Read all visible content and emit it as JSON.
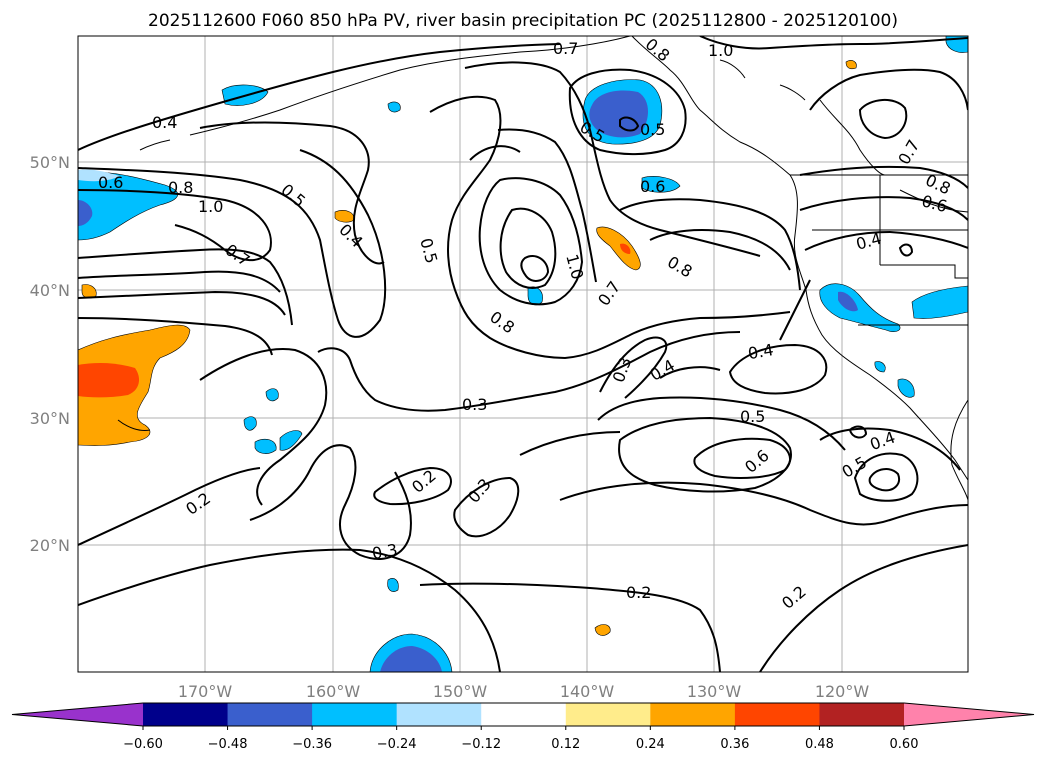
{
  "title": "2025112600 F060 850 hPa PV, river basin precipitation PC (2025112800 - 2025120100)",
  "map": {
    "lat_ticks": [
      "50°N",
      "40°N",
      "30°N",
      "20°N"
    ],
    "lon_ticks": [
      "170°W",
      "160°W",
      "150°W",
      "140°W",
      "130°W",
      "120°W"
    ],
    "contour_labels": [
      {
        "text": "0.4"
      },
      {
        "text": "0.6"
      },
      {
        "text": "0.8"
      },
      {
        "text": "1.0"
      },
      {
        "text": "0.5"
      },
      {
        "text": "0.4"
      },
      {
        "text": "0.7"
      },
      {
        "text": "0.5"
      },
      {
        "text": "0.5"
      },
      {
        "text": "0.8"
      },
      {
        "text": "1.0"
      },
      {
        "text": "0.7"
      },
      {
        "text": "0.7"
      },
      {
        "text": "0.8"
      },
      {
        "text": "1.0"
      },
      {
        "text": "0.5"
      },
      {
        "text": "0.6"
      },
      {
        "text": "0.8"
      },
      {
        "text": "0.7"
      },
      {
        "text": "0.8"
      },
      {
        "text": "0.6"
      },
      {
        "text": "0.4"
      },
      {
        "text": "0.3"
      },
      {
        "text": "0.4"
      },
      {
        "text": "0.4"
      },
      {
        "text": "0.3"
      },
      {
        "text": "0.5"
      },
      {
        "text": "0.6"
      },
      {
        "text": "0.5"
      },
      {
        "text": "0.4"
      },
      {
        "text": "0.2"
      },
      {
        "text": "0.2"
      },
      {
        "text": "0.3"
      },
      {
        "text": "0.3"
      },
      {
        "text": "0.2"
      },
      {
        "text": "0.2"
      }
    ]
  },
  "colorbar": {
    "levels": [
      "−0.60",
      "−0.48",
      "−0.36",
      "−0.24",
      "−0.12",
      "0.12",
      "0.24",
      "0.36",
      "0.48",
      "0.60"
    ],
    "colors": [
      "#9932cc",
      "#00008b",
      "#3a5fcd",
      "#00bfff",
      "#b0e2ff",
      "#ffffff",
      "#ffec8b",
      "#ffa500",
      "#ff4500",
      "#b22222",
      "#ff82ab"
    ]
  }
}
